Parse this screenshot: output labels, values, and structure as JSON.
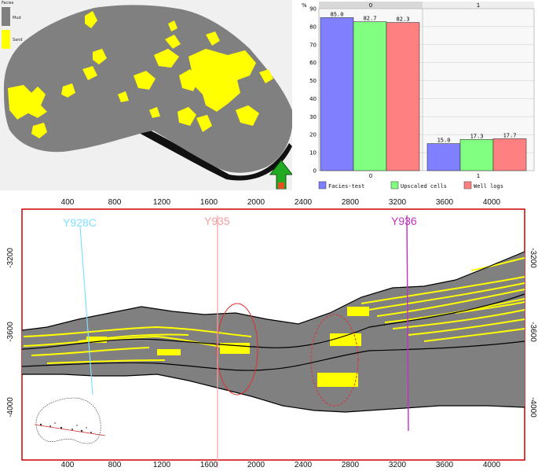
{
  "map": {
    "legend": {
      "title": "Facies",
      "items": [
        {
          "label": "Mud",
          "color": "#808080"
        },
        {
          "label": "Sand",
          "color": "#ffff00"
        }
      ]
    },
    "north_arrow_icon": "north-arrow-icon",
    "colors": {
      "mud": "#808080",
      "sand": "#ffff00",
      "shadow": "#000000",
      "arrow": "#22aa22"
    }
  },
  "chart_data": {
    "type": "bar",
    "categories": [
      "0",
      "1"
    ],
    "top_labels": [
      "0",
      "1"
    ],
    "y_unit": "%",
    "ylim": [
      0,
      90
    ],
    "yticks": [
      0,
      10,
      20,
      30,
      40,
      50,
      60,
      70,
      80,
      90
    ],
    "series": [
      {
        "name": "Facies-test",
        "color": "#8080ff",
        "values": [
          85.0,
          15.0
        ]
      },
      {
        "name": "Upscaled cells",
        "color": "#80ff80",
        "values": [
          82.7,
          17.3
        ]
      },
      {
        "name": "Well logs",
        "color": "#ff8080",
        "values": [
          82.3,
          17.7
        ]
      }
    ],
    "value_labels": [
      [
        "85.0",
        "15.0"
      ],
      [
        "82.7",
        "17.3"
      ],
      [
        "82.3",
        "17.7"
      ]
    ],
    "grid": true,
    "legend_position": "bottom"
  },
  "section": {
    "x_ticks": [
      "400",
      "800",
      "1200",
      "1600",
      "2000",
      "2400",
      "2800",
      "3200",
      "3600",
      "4000"
    ],
    "y_ticks": [
      "-3200",
      "-3600",
      "-4000"
    ],
    "wells": [
      {
        "name": "Y928C",
        "color": "#80e0ff"
      },
      {
        "name": "Y935",
        "color": "#f4a0a0"
      },
      {
        "name": "Y936",
        "color": "#c030c0"
      }
    ],
    "colors": {
      "frame": "#cc0000",
      "mud": "#808080",
      "sand": "#ffff00",
      "horizon": "#000000",
      "ellipse": "#e03030"
    }
  }
}
